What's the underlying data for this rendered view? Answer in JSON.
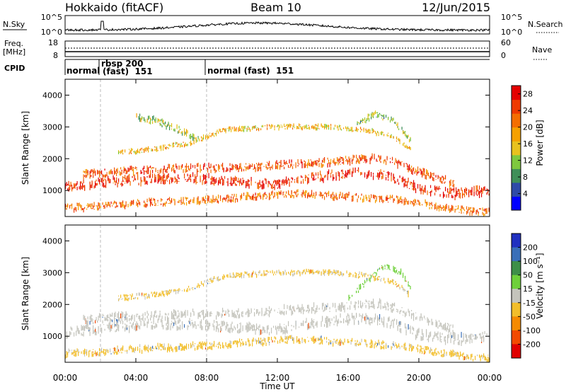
{
  "header": {
    "station": "Hokkaido (fitACF)",
    "beam": "Beam 10",
    "date": "12/Jun/2015"
  },
  "summary": {
    "nsky_label": "N.Sky",
    "nsearch_label": "N.Search",
    "freq_label": "Freq.",
    "freq_unit": "[MHz]",
    "nave_label": "Nave",
    "cpid_label": "CPID",
    "nsky_ticks": [
      "10^5",
      "10^0"
    ],
    "nsearch_ticks": [
      "10^5",
      "10^0"
    ],
    "freq_ticks": [
      "18",
      "8"
    ],
    "nave_ticks": [
      "60",
      "0"
    ],
    "cpid_modes": [
      {
        "label": "normal",
        "start_hour": 0.0
      },
      {
        "label": "rbsp 200",
        "label2": "(fast)  151",
        "start_hour": 2.0
      },
      {
        "label": "normal (fast)  151",
        "start_hour": 8.0
      }
    ]
  },
  "chart_data": [
    {
      "type": "heatmap",
      "name": "power",
      "title": "",
      "xlabel": "",
      "ylabel": "Slant Range [km]",
      "x_ticks": [
        "00:00",
        "04:00",
        "08:00",
        "12:00",
        "16:00",
        "20:00",
        "00:00"
      ],
      "xlim_hours": [
        0,
        24
      ],
      "ylim": [
        180,
        4500
      ],
      "y_ticks": [
        1000,
        2000,
        3000,
        4000
      ],
      "colorbar": {
        "label": "Power [dB]",
        "ticks": [
          4,
          8,
          12,
          16,
          20,
          24,
          28
        ],
        "range": [
          0,
          30
        ],
        "colors": [
          "#0000ff",
          "#2e4aa8",
          "#3f8f58",
          "#7ec83e",
          "#e8c21e",
          "#f5a000",
          "#f46e00",
          "#ee3a00",
          "#e40000"
        ]
      },
      "bands": [
        {
          "hours": [
            0.0,
            1.5,
            3.0,
            5.0,
            7.0,
            9.0,
            12.0,
            14.0,
            16.0,
            18.0,
            19.0,
            20.0,
            22.0,
            24.0
          ],
          "km": [
            1100,
            1200,
            1300,
            1350,
            1400,
            1300,
            1200,
            1400,
            1550,
            1500,
            1300,
            1050,
            900,
            1000
          ],
          "width": 260,
          "value": 26
        },
        {
          "hours": [
            1.0,
            3.0,
            5.0,
            7.0,
            9.0,
            12.0,
            15.0,
            17.0,
            18.0,
            19.0,
            20.0,
            22.0
          ],
          "km": [
            1500,
            1600,
            1650,
            1700,
            1700,
            1800,
            1900,
            2000,
            2000,
            1800,
            1600,
            1200
          ],
          "width": 220,
          "value": 24
        },
        {
          "hours": [
            3.0,
            5.0,
            7.0,
            9.0,
            12.0,
            15.0,
            17.0,
            18.5,
            19.5
          ],
          "km": [
            2200,
            2300,
            2500,
            2900,
            3000,
            3000,
            2900,
            2700,
            2300
          ],
          "width": 140,
          "value": 17
        },
        {
          "hours": [
            4.0,
            5.0,
            6.5,
            7.5
          ],
          "km": [
            3300,
            3200,
            2900,
            2600
          ],
          "width": 200,
          "value": 13
        },
        {
          "hours": [
            16.5,
            17.5,
            18.5,
            19.5
          ],
          "km": [
            3100,
            3400,
            3200,
            2600
          ],
          "width": 160,
          "value": 11
        },
        {
          "hours": [
            0.0,
            2.0,
            4.0,
            6.0,
            8.0,
            10.0,
            13.0,
            16.0,
            19.0,
            21.0,
            23.0,
            24.0
          ],
          "km": [
            450,
            500,
            600,
            650,
            700,
            800,
            900,
            800,
            700,
            500,
            350,
            300
          ],
          "width": 200,
          "value": 22
        }
      ]
    },
    {
      "type": "heatmap",
      "name": "velocity",
      "title": "",
      "xlabel": "Time UT",
      "ylabel": "Slant Range [km]",
      "x_ticks": [
        "00:00",
        "04:00",
        "08:00",
        "12:00",
        "16:00",
        "20:00",
        "00:00"
      ],
      "xlim_hours": [
        0,
        24
      ],
      "ylim": [
        180,
        4500
      ],
      "y_ticks": [
        1000,
        2000,
        3000,
        4000
      ],
      "colorbar": {
        "label": "Velocity [m s⁻¹]",
        "ticks": [
          200,
          100,
          50,
          15,
          -15,
          -50,
          -100,
          -200
        ],
        "colors": [
          "#2030c0",
          "#3a6fb8",
          "#3d8f48",
          "#6ed03a",
          "#c4c4bc",
          "#f2be2a",
          "#f58a00",
          "#f24a00",
          "#e00000"
        ]
      },
      "bands": [
        {
          "hours": [
            0.0,
            1.5,
            3.0,
            5.0,
            7.0,
            9.0,
            12.0,
            14.0,
            16.0,
            18.0,
            19.0,
            20.0,
            22.0,
            24.0
          ],
          "km": [
            1100,
            1200,
            1300,
            1350,
            1400,
            1300,
            1200,
            1400,
            1550,
            1500,
            1300,
            1050,
            900,
            1000
          ],
          "width": 280,
          "value": 0
        },
        {
          "hours": [
            1.0,
            3.0,
            5.0,
            7.0,
            9.0,
            12.0,
            15.0,
            17.0,
            18.0,
            19.0,
            20.0,
            22.0
          ],
          "km": [
            1500,
            1600,
            1650,
            1700,
            1700,
            1800,
            1900,
            2000,
            2000,
            1800,
            1600,
            1200
          ],
          "width": 240,
          "value": 0
        },
        {
          "hours": [
            3.0,
            5.0,
            7.0,
            9.0,
            12.0,
            15.0,
            17.0,
            18.5,
            19.5
          ],
          "km": [
            2200,
            2300,
            2500,
            2900,
            3000,
            3000,
            2900,
            2700,
            2300
          ],
          "width": 150,
          "value": -20
        },
        {
          "hours": [
            16.0,
            17.0,
            18.0,
            19.0,
            19.5
          ],
          "km": [
            2200,
            2700,
            3200,
            3000,
            2500
          ],
          "width": 160,
          "value": 30
        },
        {
          "hours": [
            0.0,
            2.0,
            4.0,
            6.0,
            8.0,
            10.0,
            13.0,
            16.0,
            19.0,
            21.0,
            23.0,
            24.0
          ],
          "km": [
            450,
            500,
            600,
            650,
            700,
            800,
            900,
            800,
            700,
            500,
            350,
            300
          ],
          "width": 200,
          "value": -25
        }
      ]
    }
  ]
}
